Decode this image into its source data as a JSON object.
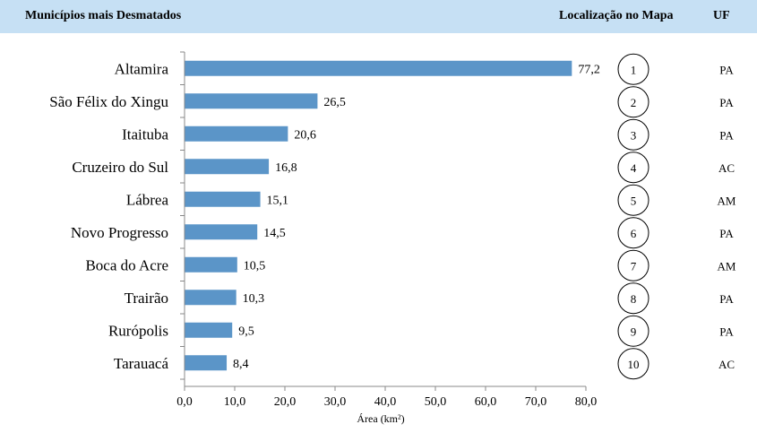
{
  "header": {
    "title": "Municípios mais Desmatados",
    "map_col": "Localização no Mapa",
    "uf_col": "UF"
  },
  "chart_data": {
    "type": "bar",
    "orientation": "horizontal",
    "categories": [
      "Altamira",
      "São Félix do Xingu",
      "Itaituba",
      "Cruzeiro do Sul",
      "Lábrea",
      "Novo Progresso",
      "Boca do Acre",
      "Trairão",
      "Rurópolis",
      "Tarauacá"
    ],
    "values": [
      77.2,
      26.5,
      20.6,
      16.8,
      15.1,
      14.5,
      10.5,
      10.3,
      9.5,
      8.4
    ],
    "value_labels": [
      "77,2",
      "26,5",
      "20,6",
      "16,8",
      "15,1",
      "14,5",
      "10,5",
      "10,3",
      "9,5",
      "8,4"
    ],
    "map_numbers": [
      "1",
      "2",
      "3",
      "4",
      "5",
      "6",
      "7",
      "8",
      "9",
      "10"
    ],
    "uf": [
      "PA",
      "PA",
      "PA",
      "AC",
      "AM",
      "PA",
      "AM",
      "PA",
      "PA",
      "AC"
    ],
    "xlabel": "Área (km²)",
    "xlim": [
      0,
      80
    ],
    "xticks": [
      0,
      10,
      20,
      30,
      40,
      50,
      60,
      70,
      80
    ],
    "xtick_labels": [
      "0,0",
      "10,0",
      "20,0",
      "30,0",
      "40,0",
      "50,0",
      "60,0",
      "70,0",
      "80,0"
    ],
    "bar_color": "#5b95c8",
    "grid": false,
    "legend": "none"
  }
}
